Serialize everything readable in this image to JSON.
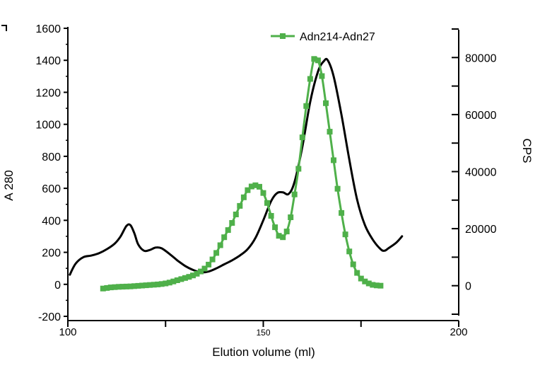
{
  "chart_data": {
    "type": "line",
    "xlabel": "Elution volume (ml)",
    "ylabel_left": "A 280",
    "ylabel_right": "CPS",
    "x_ticks": [
      "100",
      "150",
      "200"
    ],
    "y_left_ticks": [
      "1600",
      "1400",
      "1200",
      "1000",
      "800",
      "600",
      "400",
      "200",
      "0",
      "-200"
    ],
    "y_right_ticks": [
      "80000",
      "60000",
      "40000",
      "20000",
      "0"
    ],
    "xlim": [
      100,
      200
    ],
    "ylim_left": [
      -200,
      1600
    ],
    "ylim_right": [
      -10000,
      90000
    ],
    "legend_position": "top-right",
    "grid": false,
    "colors": {
      "a280": "#000000",
      "cps": "#4fb04a"
    },
    "series": [
      {
        "axis": "left",
        "values": [
          [
            100.5,
            60
          ],
          [
            102,
            130
          ],
          [
            104,
            170
          ],
          [
            106,
            180
          ],
          [
            108,
            195
          ],
          [
            110,
            220
          ],
          [
            112,
            255
          ],
          [
            113.5,
            300
          ],
          [
            115,
            365
          ],
          [
            116,
            370
          ],
          [
            117,
            320
          ],
          [
            118,
            250
          ],
          [
            119.5,
            210
          ],
          [
            121,
            215
          ],
          [
            122.5,
            230
          ],
          [
            124,
            225
          ],
          [
            126,
            190
          ],
          [
            128,
            150
          ],
          [
            130,
            115
          ],
          [
            132,
            90
          ],
          [
            134,
            75
          ],
          [
            136,
            80
          ],
          [
            138,
            100
          ],
          [
            140,
            125
          ],
          [
            142,
            150
          ],
          [
            144,
            180
          ],
          [
            146,
            220
          ],
          [
            148,
            290
          ],
          [
            150,
            400
          ],
          [
            152,
            520
          ],
          [
            153.5,
            570
          ],
          [
            155,
            575
          ],
          [
            156.5,
            565
          ],
          [
            158,
            640
          ],
          [
            160,
            860
          ],
          [
            162,
            1140
          ],
          [
            164,
            1330
          ],
          [
            165.5,
            1395
          ],
          [
            166.5,
            1400
          ],
          [
            168,
            1300
          ],
          [
            170,
            1060
          ],
          [
            172,
            780
          ],
          [
            174,
            530
          ],
          [
            176,
            370
          ],
          [
            178,
            280
          ],
          [
            180,
            220
          ],
          [
            181,
            210
          ],
          [
            182,
            225
          ],
          [
            184,
            260
          ],
          [
            185.5,
            300
          ]
        ]
      },
      {
        "name": "Adn214-Adn27",
        "axis": "right",
        "values": [
          [
            109,
            -1000
          ],
          [
            110,
            -800
          ],
          [
            111,
            -600
          ],
          [
            112,
            -500
          ],
          [
            113,
            -400
          ],
          [
            114,
            -350
          ],
          [
            115,
            -300
          ],
          [
            116,
            -250
          ],
          [
            117,
            -150
          ],
          [
            118,
            -50
          ],
          [
            119,
            50
          ],
          [
            120,
            150
          ],
          [
            121,
            250
          ],
          [
            122,
            350
          ],
          [
            123,
            450
          ],
          [
            124,
            600
          ],
          [
            125,
            800
          ],
          [
            126,
            1100
          ],
          [
            127,
            1500
          ],
          [
            128,
            1900
          ],
          [
            129,
            2300
          ],
          [
            130,
            2700
          ],
          [
            131,
            3100
          ],
          [
            132,
            3600
          ],
          [
            133,
            4200
          ],
          [
            134,
            5000
          ],
          [
            135,
            6000
          ],
          [
            136,
            7400
          ],
          [
            137,
            9200
          ],
          [
            138,
            11500
          ],
          [
            139,
            14200
          ],
          [
            140,
            17000
          ],
          [
            141,
            19500
          ],
          [
            142,
            22000
          ],
          [
            143,
            25000
          ],
          [
            144,
            28000
          ],
          [
            145,
            31000
          ],
          [
            146,
            33500
          ],
          [
            147,
            34800
          ],
          [
            148,
            35200
          ],
          [
            149,
            34700
          ],
          [
            150,
            32500
          ],
          [
            151,
            29000
          ],
          [
            152,
            24500
          ],
          [
            153,
            20500
          ],
          [
            154,
            17500
          ],
          [
            155,
            17000
          ],
          [
            156,
            19000
          ],
          [
            157,
            24000
          ],
          [
            158,
            32000
          ],
          [
            159,
            41000
          ],
          [
            160,
            52000
          ],
          [
            161,
            63000
          ],
          [
            162,
            72500
          ],
          [
            163,
            79500
          ],
          [
            164,
            79000
          ],
          [
            165,
            73500
          ],
          [
            166,
            64000
          ],
          [
            167,
            54000
          ],
          [
            168,
            44000
          ],
          [
            169,
            34000
          ],
          [
            170,
            25500
          ],
          [
            171,
            18000
          ],
          [
            172,
            12000
          ],
          [
            173,
            7500
          ],
          [
            174,
            4500
          ],
          [
            175,
            2500
          ],
          [
            176,
            1500
          ],
          [
            177,
            800
          ],
          [
            178,
            300
          ],
          [
            179,
            100
          ],
          [
            180,
            0
          ]
        ]
      }
    ]
  }
}
